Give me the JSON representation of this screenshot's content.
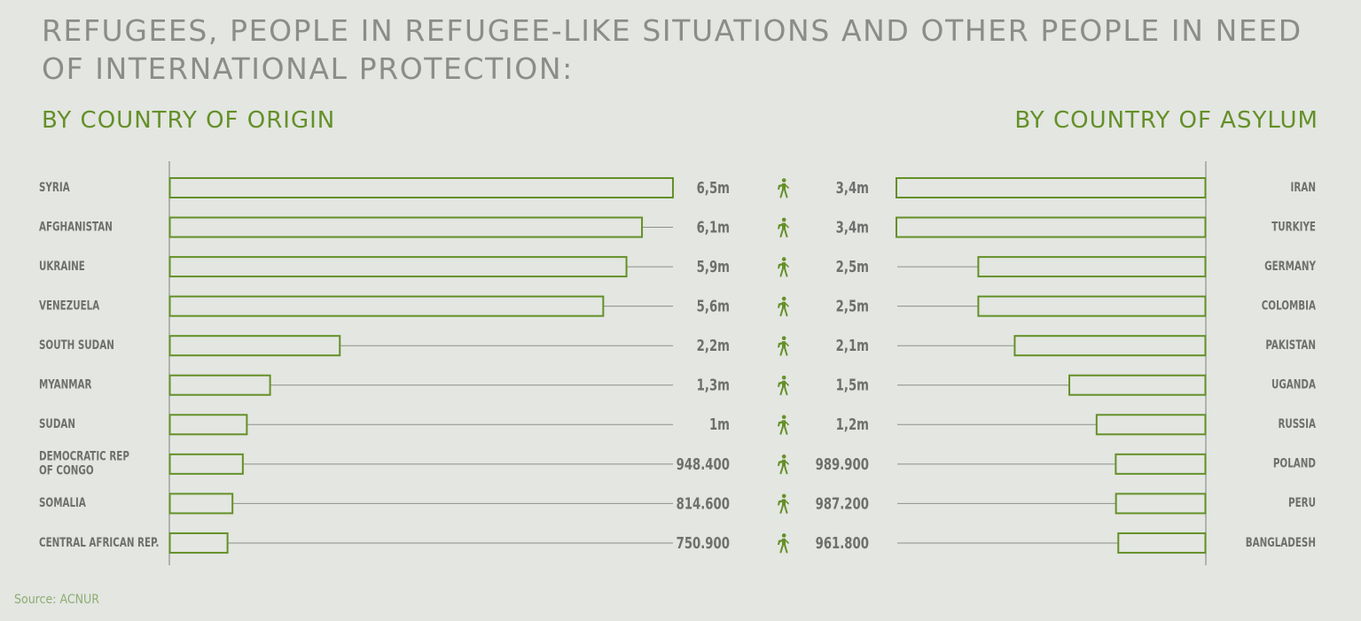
{
  "header": {
    "title": "REFUGEES, PEOPLE IN REFUGEE-LIKE SITUATIONS AND OTHER PEOPLE IN NEED OF INTERNATIONAL PROTECTION:",
    "origin_heading": "BY COUNTRY OF ORIGIN",
    "asylum_heading": "BY COUNTRY OF ASYLUM"
  },
  "source": "Source: ACNUR",
  "colors": {
    "background": "#e3e6e1",
    "accent": "#649028",
    "label": "#6d706d",
    "title": "#8a8d8a",
    "guide_line": "#8d8f8c"
  },
  "icon": "hiker-icon",
  "chart_data": [
    {
      "type": "bar",
      "orientation": "horizontal",
      "direction": "left-to-right",
      "title": "BY COUNTRY OF ORIGIN",
      "categories": [
        "SYRIA",
        "AFGHANISTAN",
        "UKRAINE",
        "VENEZUELA",
        "SOUTH SUDAN",
        "MYANMAR",
        "SUDAN",
        "DEMOCRATIC REP\nOF CONGO",
        "SOMALIA",
        "CENTRAL AFRICAN REP."
      ],
      "values": [
        6500000,
        6100000,
        5900000,
        5600000,
        2200000,
        1300000,
        1000000,
        948400,
        814600,
        750900
      ],
      "value_labels": [
        "6,5m",
        "6,1m",
        "5,9m",
        "5,6m",
        "2,2m",
        "1,3m",
        "1m",
        "948.400",
        "814.600",
        "750.900"
      ],
      "xlim": [
        0,
        6500000
      ],
      "grid": false,
      "legend": "none"
    },
    {
      "type": "bar",
      "orientation": "horizontal",
      "direction": "right-to-left",
      "title": "BY COUNTRY OF ASYLUM",
      "categories": [
        "IRAN",
        "TURKIYE",
        "GERMANY",
        "COLOMBIA",
        "PAKISTAN",
        "UGANDA",
        "RUSSIA",
        "POLAND",
        "PERU",
        "BANGLADESH"
      ],
      "values": [
        3400000,
        3400000,
        2500000,
        2500000,
        2100000,
        1500000,
        1200000,
        989900,
        987200,
        961800
      ],
      "value_labels": [
        "3,4m",
        "3,4m",
        "2,5m",
        "2,5m",
        "2,1m",
        "1,5m",
        "1,2m",
        "989.900",
        "987.200",
        "961.800"
      ],
      "xlim": [
        0,
        3400000
      ],
      "grid": false,
      "legend": "none"
    }
  ]
}
